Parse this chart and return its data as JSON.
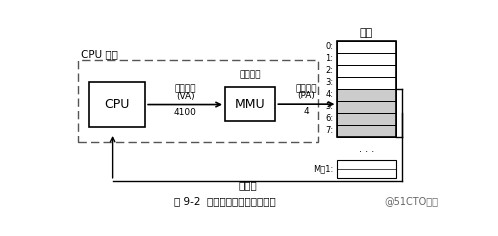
{
  "title": "图 9-2  一个使用虚拟寻址的系统",
  "watermark": "@51CTO博客",
  "cpu_chip_label": "CPU 芯片",
  "cpu_label": "CPU",
  "mmu_label": "MMU",
  "va_line1": "虚拟地址",
  "va_line2": "(VA)",
  "va_value": "4100",
  "addr_trans_label": "地址翻译",
  "pa_line1": "物理地址",
  "pa_line2": "(PA)",
  "pa_value": "4",
  "main_mem_label": "主存",
  "data_word_label": "数据字",
  "mem_labels": [
    "0:",
    "1:",
    "2:",
    "3:",
    "4:",
    "5:",
    "6:",
    "7:"
  ],
  "mem_bottom_label": "M－1:",
  "shaded_rows": [
    4,
    5,
    6,
    7
  ],
  "shaded_color": "#cccccc"
}
